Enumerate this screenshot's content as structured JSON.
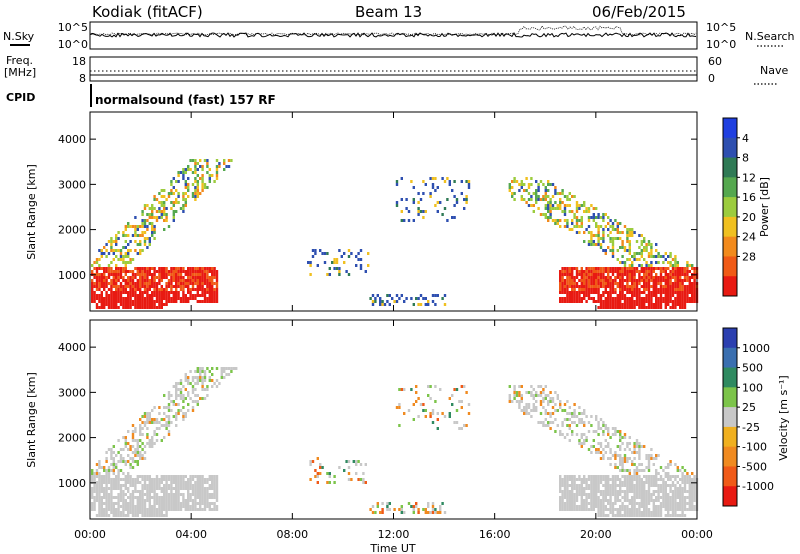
{
  "header": {
    "station": "Kodiak (fitACF)",
    "beam": "Beam 13",
    "date": "06/Feb/2015"
  },
  "strip_panels": {
    "nsky": {
      "left_label": "N.Sky",
      "right_label": "N.Search",
      "left_ticks": [
        "10^5",
        "10^0"
      ],
      "right_ticks": [
        "10^5",
        "10^0"
      ]
    },
    "freq": {
      "left_label_1": "Freq.",
      "left_label_2": "[MHz]",
      "right_label": "Nave",
      "left_ticks": [
        "18",
        "8"
      ],
      "right_ticks": [
        "60",
        "0"
      ]
    },
    "cpid": {
      "label": "CPID",
      "text": "normalsound (fast) 157 RF"
    }
  },
  "chart_data": [
    {
      "type": "heatmap",
      "name": "power",
      "ylabel": "Slant Range [km]",
      "y_ticks": [
        1000,
        2000,
        3000,
        4000
      ],
      "ylim": [
        200,
        4600
      ],
      "xlim": [
        0,
        24
      ],
      "colorbar": {
        "label": "Power [dB]",
        "ticks": [
          "4",
          "8",
          "12",
          "16",
          "20",
          "24",
          "28"
        ],
        "colors": [
          "#1f3fe0",
          "#2e4fb0",
          "#2f7a55",
          "#55a84f",
          "#9ccc3e",
          "#f0c020",
          "#f28a1c",
          "#f05a16",
          "#e81a12"
        ]
      }
    },
    {
      "type": "heatmap",
      "name": "velocity",
      "ylabel": "Slant Range [km]",
      "y_ticks": [
        1000,
        2000,
        3000,
        4000
      ],
      "ylim": [
        200,
        4600
      ],
      "xlim": [
        0,
        24
      ],
      "xlabel": "Time UT",
      "x_ticks": [
        "00:00",
        "04:00",
        "08:00",
        "12:00",
        "16:00",
        "20:00",
        "00:00"
      ],
      "colorbar": {
        "label": "Velocity [m s⁻¹]",
        "ticks": [
          "1000",
          "500",
          "100",
          "25",
          "-25",
          "-100",
          "-500",
          "-1000"
        ],
        "colors": [
          "#2b3fb0",
          "#3a6fb0",
          "#2f8a60",
          "#7cc44a",
          "#c8c8c8",
          "#f0b020",
          "#f08a20",
          "#f05a18",
          "#e81a12"
        ]
      }
    }
  ]
}
